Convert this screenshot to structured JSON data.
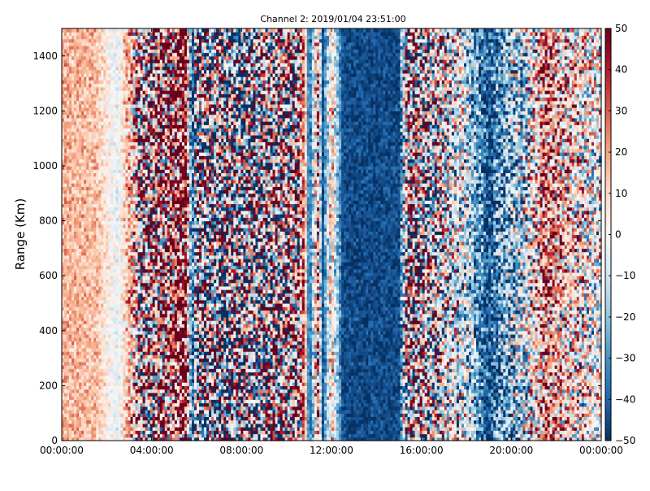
{
  "chart_data": {
    "type": "heatmap",
    "title": "Channel 2: 2019/01/04 23:51:00",
    "xlabel": "",
    "ylabel": "Range (Km)",
    "xlim": [
      "00:00:00",
      "24:00:00"
    ],
    "ylim": [
      0,
      1500
    ],
    "x_ticks": [
      "00:00:00",
      "04:00:00",
      "08:00:00",
      "12:00:00",
      "16:00:00",
      "20:00:00",
      "00:00:00"
    ],
    "y_ticks": [
      0,
      200,
      400,
      600,
      800,
      1000,
      1200,
      1400
    ],
    "colorbar": {
      "colormap": "RdBu_r",
      "min": -50,
      "max": 50,
      "ticks": [
        50,
        40,
        30,
        20,
        10,
        0,
        -10,
        -20,
        -30,
        -40,
        -50
      ],
      "colors": [
        "#053061",
        "#2166ac",
        "#4393c3",
        "#92c5de",
        "#d1e5f0",
        "#f7f7f7",
        "#fddbc7",
        "#f4a582",
        "#d6604d",
        "#b2182b",
        "#67001f"
      ]
    },
    "grid": false,
    "time_profile": {
      "hours": [
        0.0,
        1.5,
        2.5,
        3.0,
        3.5,
        5.5,
        5.8,
        6.0,
        8.0,
        10.5,
        10.8,
        11.0,
        11.4,
        11.6,
        12.0,
        12.5,
        13.0,
        14.0,
        15.0,
        15.4,
        16.5,
        18.0,
        19.0,
        19.5,
        20.5,
        21.5,
        22.5,
        24.0
      ],
      "mean_value": [
        18,
        15,
        -5,
        20,
        5,
        45,
        -45,
        0,
        -10,
        10,
        35,
        -45,
        20,
        -45,
        10,
        -45,
        -45,
        -45,
        -45,
        10,
        0,
        -10,
        -45,
        -30,
        -15,
        25,
        10,
        -5
      ],
      "noise_amplitude": [
        8,
        8,
        6,
        15,
        55,
        40,
        10,
        55,
        55,
        55,
        10,
        5,
        30,
        5,
        20,
        5,
        5,
        5,
        5,
        55,
        45,
        25,
        15,
        25,
        30,
        30,
        30,
        25
      ]
    }
  }
}
